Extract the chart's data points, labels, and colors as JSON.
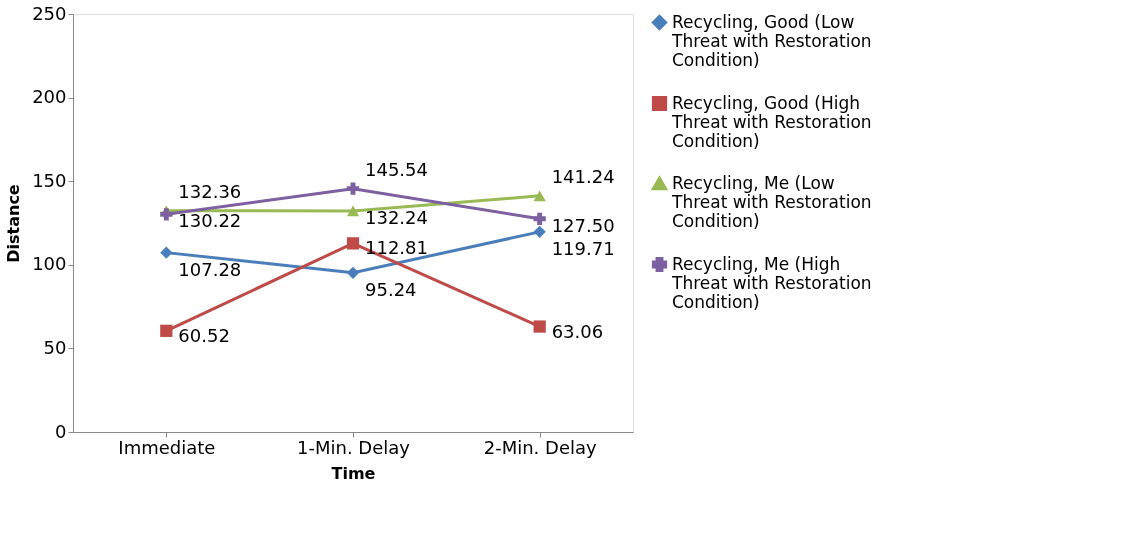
{
  "chart_data": {
    "type": "line",
    "xlabel": "Time",
    "ylabel": "Distance",
    "categories": [
      "Immediate",
      "1-Min. Delay",
      "2-Min. Delay"
    ],
    "ylim": [
      0,
      250
    ],
    "yticks": [
      0,
      50,
      100,
      150,
      200,
      250
    ],
    "grid": false,
    "legend": "right",
    "data_labels": true,
    "line_style": "solid",
    "series": [
      {
        "name": "Recycling, Good (Low Threat with Restoration Condition)",
        "color": "#4a7ebb",
        "marker": "diamond",
        "values": [
          107.28,
          95.24,
          119.71
        ]
      },
      {
        "name": "Recycling, Good (High Threat with Restoration Condition)",
        "color": "#be4b48",
        "marker": "square",
        "values": [
          60.52,
          112.81,
          63.06
        ]
      },
      {
        "name": "Recycling, Me (Low Threat with Restoration Condition)",
        "color": "#98b954",
        "marker": "triangle",
        "values": [
          132.36,
          132.24,
          141.24
        ]
      },
      {
        "name": "Recycling, Me (High Threat with Restoration Condition)",
        "color": "#7d60a0",
        "marker": "cross",
        "values": [
          130.22,
          145.54,
          127.5
        ],
        "value_labels": [
          "130.22",
          "145.54",
          "127.50"
        ]
      }
    ]
  }
}
